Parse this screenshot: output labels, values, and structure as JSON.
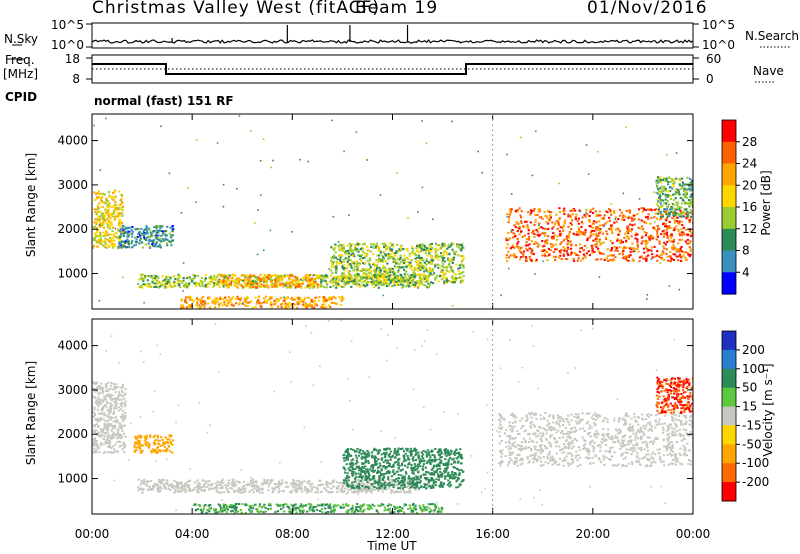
{
  "header": {
    "title": "Christmas Valley West (fitACF)",
    "beam": "Beam 19",
    "date": "01/Nov/2016"
  },
  "params": {
    "nsky_label": "N.Sky",
    "freq_label_1": "Freq.",
    "freq_label_2": "[MHz]",
    "cpid_label": "CPID",
    "nsearch_label": "N.Search",
    "nave_label": "Nave",
    "noise_ticks": [
      "10^5",
      "10^0"
    ],
    "freq_ticks": [
      "18",
      "8"
    ],
    "nave_ticks": [
      "60",
      "0"
    ],
    "cpid_text": "normal (fast) 151 RF"
  },
  "axes": {
    "ylabel": "Slant Range [km]",
    "xlabel": "Time UT",
    "yticks": [
      "4000",
      "3000",
      "2000",
      "1000"
    ],
    "xticks": [
      "00:00",
      "04:00",
      "08:00",
      "12:00",
      "16:00",
      "20:00",
      "00:00"
    ]
  },
  "power_scale": {
    "label": "Power [dB]",
    "ticks": [
      "28",
      "24",
      "20",
      "16",
      "12",
      "8",
      "4"
    ],
    "colors": [
      "#ff0000",
      "#ff6000",
      "#ffa500",
      "#ffd700",
      "#9acd32",
      "#2e8b57",
      "#3a8fbf",
      "#0000ff"
    ]
  },
  "velocity_scale": {
    "label": "Velocity [m s⁻¹]",
    "ticks": [
      "200",
      "100",
      "50",
      "15",
      "-15",
      "-50",
      "-100",
      "-200"
    ],
    "colors": [
      "#2030c0",
      "#2a7fd0",
      "#2e8b57",
      "#5ec840",
      "#c8c8c0",
      "#ffd700",
      "#ffa500",
      "#ff6a00",
      "#ff0000"
    ]
  },
  "chart_data": [
    {
      "type": "heatmap",
      "title": "Power",
      "xlabel": "Time UT",
      "ylabel": "Slant Range [km]",
      "xlim": [
        "00:00",
        "24:00"
      ],
      "ylim": [
        200,
        4600
      ],
      "features": [
        {
          "t": [
            0.0,
            1.2
          ],
          "r": [
            1600,
            2900
          ],
          "power_db": 20
        },
        {
          "t": [
            1.0,
            3.2
          ],
          "r": [
            1600,
            2100
          ],
          "power_db": 10
        },
        {
          "t": [
            1.8,
            13.5
          ],
          "r": [
            700,
            1000
          ],
          "power_db": 16
        },
        {
          "t": [
            5.0,
            9.0
          ],
          "r": [
            700,
            1000
          ],
          "power_db": 24
        },
        {
          "t": [
            9.5,
            14.8
          ],
          "r": [
            800,
            1700
          ],
          "power_db": 16
        },
        {
          "t": [
            3.5,
            10.0
          ],
          "r": [
            250,
            500
          ],
          "power_db": 24
        },
        {
          "t": [
            16.5,
            24.0
          ],
          "r": [
            1300,
            2500
          ],
          "power_db": 28
        },
        {
          "t": [
            22.5,
            24.0
          ],
          "r": [
            2300,
            3200
          ],
          "power_db": 14
        }
      ]
    },
    {
      "type": "heatmap",
      "title": "Velocity",
      "xlabel": "Time UT",
      "ylabel": "Slant Range [km]",
      "xlim": [
        "00:00",
        "24:00"
      ],
      "ylim": [
        200,
        4600
      ],
      "features": [
        {
          "t": [
            0.0,
            1.3
          ],
          "r": [
            1600,
            3200
          ],
          "velocity": 0
        },
        {
          "t": [
            1.6,
            3.2
          ],
          "r": [
            1600,
            2000
          ],
          "velocity": -60
        },
        {
          "t": [
            1.8,
            13.0
          ],
          "r": [
            700,
            1000
          ],
          "velocity": 0
        },
        {
          "t": [
            10.0,
            14.8
          ],
          "r": [
            800,
            1700
          ],
          "velocity": 50
        },
        {
          "t": [
            4.0,
            14.0
          ],
          "r": [
            250,
            450
          ],
          "velocity": 30
        },
        {
          "t": [
            16.2,
            24.0
          ],
          "r": [
            1300,
            2500
          ],
          "velocity": 0
        },
        {
          "t": [
            22.5,
            24.0
          ],
          "r": [
            2500,
            3300
          ],
          "velocity": -150
        }
      ]
    }
  ]
}
